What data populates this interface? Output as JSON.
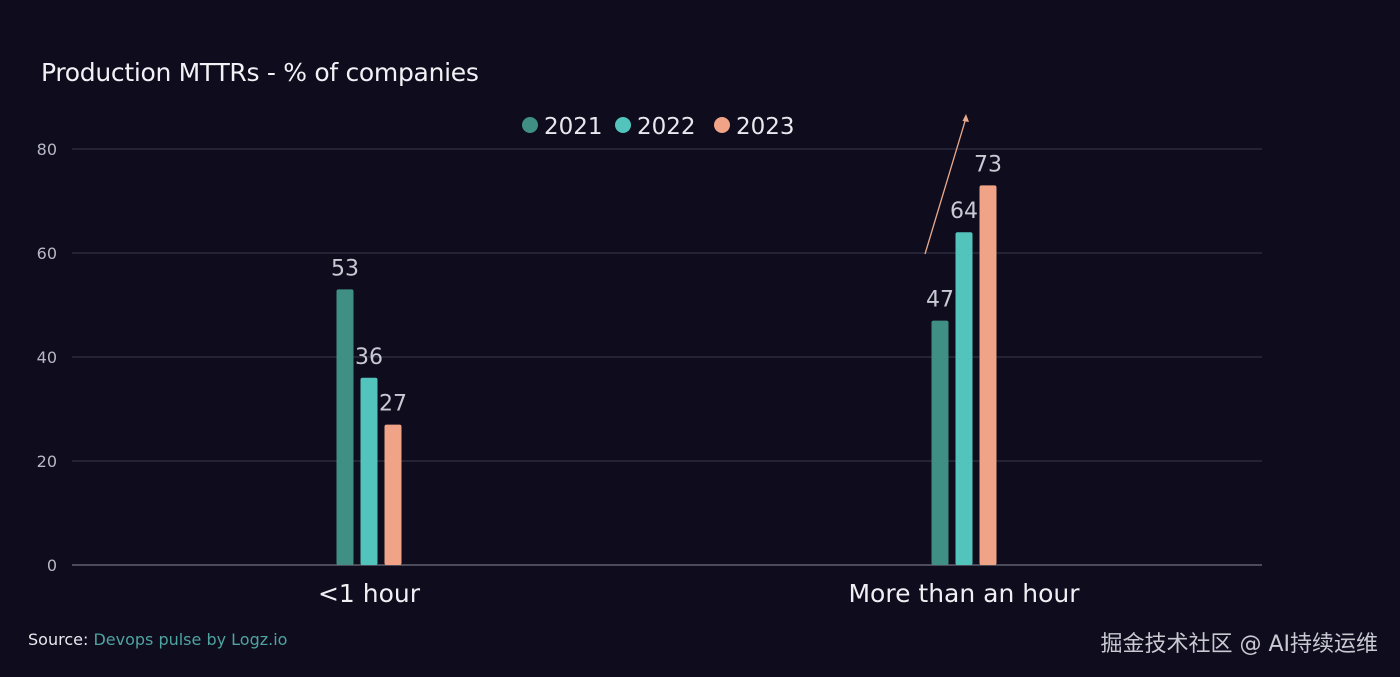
{
  "chart_data": {
    "type": "bar",
    "title": "Production MTTRs - % of companies",
    "categories": [
      "<1 hour",
      "More than an hour"
    ],
    "series": [
      {
        "name": "2021",
        "color": "#3f8f85",
        "values": [
          53,
          47
        ]
      },
      {
        "name": "2022",
        "color": "#52c4bc",
        "values": [
          36,
          64
        ]
      },
      {
        "name": "2023",
        "color": "#f0a386",
        "values": [
          27,
          73
        ]
      }
    ],
    "ylim": [
      0,
      80
    ],
    "yticks": [
      "0",
      "20",
      "40",
      "60",
      "80"
    ],
    "grid": true,
    "legend": "top-center",
    "annotation": "upward trend arrow over 'More than an hour' bars"
  },
  "source": {
    "label": "Source:",
    "link_text": "Devops pulse by Logz.io"
  },
  "watermark": "掘金技术社区 @ AI持续运维"
}
